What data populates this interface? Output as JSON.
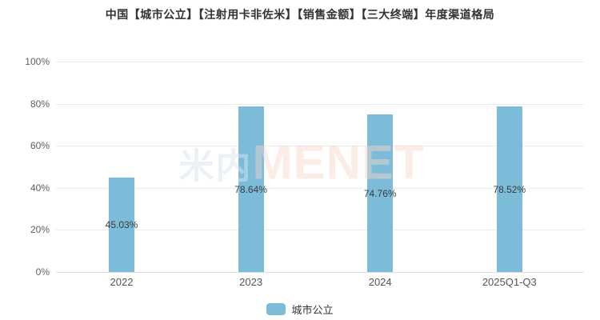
{
  "title": "中国【城市公立】【注射用卡非佐米】【销售金额】【三大终端】年度渠道格局",
  "watermark": {
    "cn": "米内",
    "en": "MENET"
  },
  "legend": {
    "label": "城市公立"
  },
  "colors": {
    "bar": "#7dbcd9",
    "grid": "#ececec",
    "zero_line": "#dedede",
    "title": "#333333",
    "y_tick_label": "#5f5f5f",
    "x_tick_label": "#555555",
    "data_label": "#3a3a3a",
    "watermark_cn": "rgba(216,228,240,0.5)",
    "watermark_en": "rgba(246,214,199,0.45)",
    "background": "#ffffff"
  },
  "chart_data": {
    "type": "bar",
    "title": "中国【城市公立】【注射用卡非佐米】【销售金额】【三大终端】年度渠道格局",
    "categories": [
      "2022",
      "2023",
      "2024",
      "2025Q1-Q3"
    ],
    "series": [
      {
        "name": "城市公立",
        "values": [
          45.03,
          78.64,
          74.76,
          78.52
        ]
      }
    ],
    "data_labels": [
      "45.03%",
      "78.64%",
      "74.76%",
      "78.52%"
    ],
    "xlabel": "",
    "ylabel": "",
    "ylim": [
      0,
      100
    ],
    "yticks": [
      0,
      20,
      40,
      60,
      80,
      100
    ],
    "ytick_labels": [
      "0%",
      "20%",
      "40%",
      "60%",
      "80%",
      "100%"
    ],
    "grid": true,
    "legend_position": "bottom"
  }
}
